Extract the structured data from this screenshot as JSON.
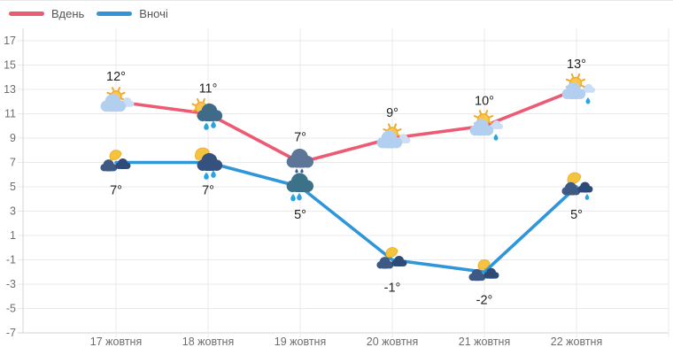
{
  "legend": {
    "day_label": "Вдень",
    "night_label": "Вночі"
  },
  "colors": {
    "day": "#ec5a74",
    "night": "#2f96d9",
    "rain_drop": "#29a3e2",
    "grid": "#e9e9e9",
    "axis": "#d6d6d6",
    "tick_text": "#6e6e6e",
    "value_text": "#222222"
  },
  "chart_data": {
    "type": "line",
    "title": "",
    "xlabel": "",
    "ylabel": "",
    "categories": [
      "17 жовтня",
      "18 жовтня",
      "19 жовтня",
      "20 жовтня",
      "21 жовтня",
      "22 жовтня"
    ],
    "y_ticks": [
      17,
      15,
      13,
      11,
      9,
      7,
      5,
      3,
      1,
      -1,
      -3,
      -5,
      -7
    ],
    "y_tick_labels": [
      "17",
      "15",
      "13",
      "11",
      "9",
      "7",
      "5",
      "3",
      "1",
      "-1",
      "-3",
      "-5",
      "-7"
    ],
    "ylim": [
      -7,
      17
    ],
    "grid": true,
    "legend_position": "top-left",
    "series": [
      {
        "name": "Вдень",
        "color": "#ec5a74",
        "values": [
          12,
          11,
          7,
          9,
          10,
          13
        ],
        "point_labels": [
          "12°",
          "11°",
          "7°",
          "9°",
          "10°",
          "13°"
        ],
        "label_position": "above",
        "icons": [
          "sun-behind-cloud-icon",
          "sun-rain-cloud-icon",
          "cloud-drizzle-icon",
          "sun-behind-cloud-icon",
          "sun-cloud-light-rain-icon",
          "sun-cloud-light-rain-icon"
        ]
      },
      {
        "name": "Вночі",
        "color": "#2f96d9",
        "values": [
          7,
          7,
          5,
          -1,
          -2,
          5
        ],
        "point_labels": [
          "7°",
          "7°",
          "5°",
          "-1°",
          "-2°",
          "5°"
        ],
        "label_position": "below",
        "icons": [
          "moon-cloud-icon",
          "moon-rain-cloud-icon",
          "cloud-rain-icon",
          "moon-cloud-icon",
          "moon-cloud-icon",
          "moon-cloud-light-rain-icon"
        ]
      }
    ]
  }
}
